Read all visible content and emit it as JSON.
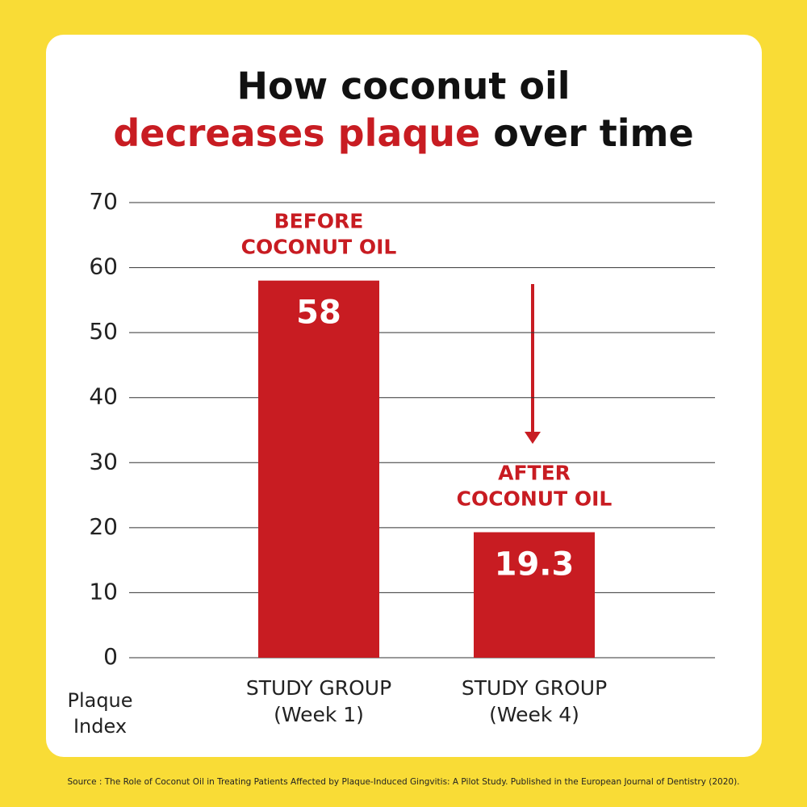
{
  "chart_data": {
    "type": "bar",
    "title": {
      "line1": "How coconut oil",
      "line2_highlight": "decreases plaque",
      "line2_rest": "over time"
    },
    "categories": [
      [
        "STUDY GROUP",
        "(Week 1)"
      ],
      [
        "STUDY GROUP",
        "(Week 4)"
      ]
    ],
    "values": [
      58,
      19.3
    ],
    "color": "#c81c22",
    "annotations": [
      [
        "BEFORE",
        "COCONUT OIL"
      ],
      [
        "AFTER",
        "COCONUT OIL"
      ]
    ],
    "ylabel": [
      "Plaque",
      "Index"
    ],
    "ylim": [
      0,
      70
    ],
    "yticks": [
      0,
      10,
      20,
      30,
      40,
      50,
      60,
      70
    ],
    "grid": true,
    "source": "Source : The Role of Coconut Oil in Treating Patients Affected by Plaque-Induced Gingvitis: A Pilot Study. Published in the European Journal of Dentistry (2020)."
  }
}
